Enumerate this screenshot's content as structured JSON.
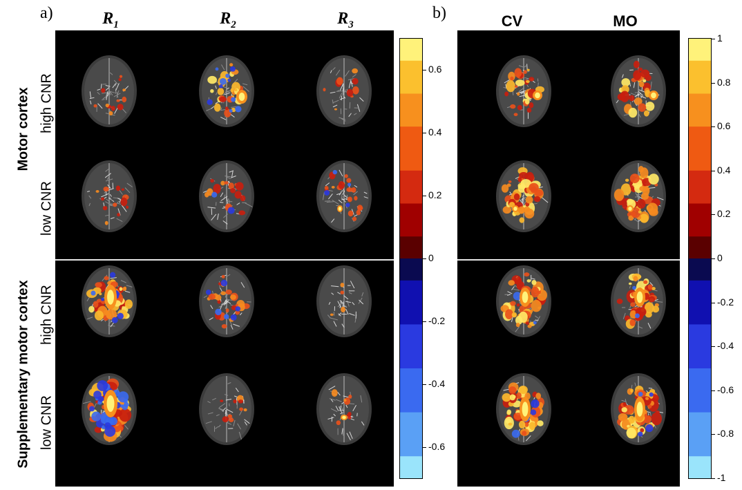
{
  "panel_a": {
    "letter": "a)",
    "columns": [
      {
        "base": "R",
        "sub": "1"
      },
      {
        "base": "R",
        "sub": "2"
      },
      {
        "base": "R",
        "sub": "3"
      }
    ],
    "colorbar": {
      "ticks": [
        "0.6",
        "0.4",
        "0.2",
        "0",
        "-0.2",
        "-0.4",
        "-0.6"
      ],
      "tick_values": [
        0.6,
        0.4,
        0.2,
        0,
        -0.2,
        -0.4,
        -0.6
      ],
      "range": [
        -0.7,
        0.7
      ]
    }
  },
  "panel_b": {
    "letter": "b)",
    "columns": [
      "CV",
      "MO"
    ],
    "colorbar": {
      "ticks": [
        "1",
        "0.8",
        "0.6",
        "0.4",
        "0.2",
        "0",
        "-0.2",
        "-0.4",
        "-0.6",
        "-0.8",
        "-1"
      ],
      "tick_values": [
        1,
        0.8,
        0.6,
        0.4,
        0.2,
        0,
        -0.2,
        -0.4,
        -0.6,
        -0.8,
        -1
      ],
      "range": [
        -1,
        1
      ]
    }
  },
  "groups": [
    {
      "label": "Motor cortex",
      "rows": [
        "high CNR",
        "low CNR"
      ]
    },
    {
      "label": "Supplementary motor cortex",
      "rows": [
        "high CNR",
        "low CNR"
      ]
    }
  ],
  "colors": {
    "positive_scale": [
      "#5a0000",
      "#a00000",
      "#d42a10",
      "#ef5a12",
      "#f7901e",
      "#fbc02e",
      "#fff27a"
    ],
    "negative_scale": [
      "#0a0a50",
      "#1010b0",
      "#2a3ae0",
      "#3a6af0",
      "#5aa0f5",
      "#9ae4fb"
    ]
  }
}
